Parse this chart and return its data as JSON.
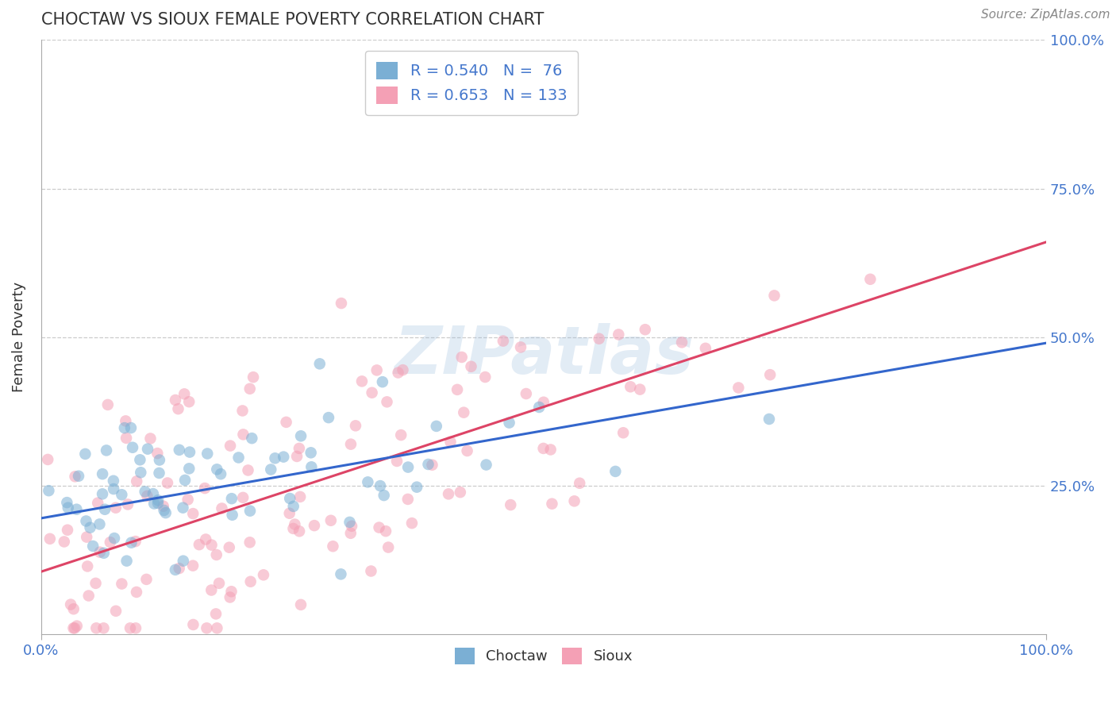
{
  "title": "CHOCTAW VS SIOUX FEMALE POVERTY CORRELATION CHART",
  "source": "Source: ZipAtlas.com",
  "ylabel": "Female Poverty",
  "xlim": [
    0.0,
    1.0
  ],
  "ylim": [
    0.0,
    1.0
  ],
  "choctaw_R": 0.54,
  "choctaw_N": 76,
  "sioux_R": 0.653,
  "sioux_N": 133,
  "choctaw_color": "#7BAFD4",
  "sioux_color": "#F4A0B5",
  "choctaw_line_color": "#3366CC",
  "sioux_line_color": "#DD4466",
  "watermark": "ZIPatlas",
  "background_color": "#FFFFFF",
  "grid_color": "#CCCCCC",
  "title_color": "#333333",
  "axis_label_color": "#4477CC",
  "legend_text_color": "#4477CC",
  "seed": 12345,
  "choctaw_intercept": 0.195,
  "choctaw_slope": 0.295,
  "sioux_intercept": 0.105,
  "sioux_slope": 0.555
}
